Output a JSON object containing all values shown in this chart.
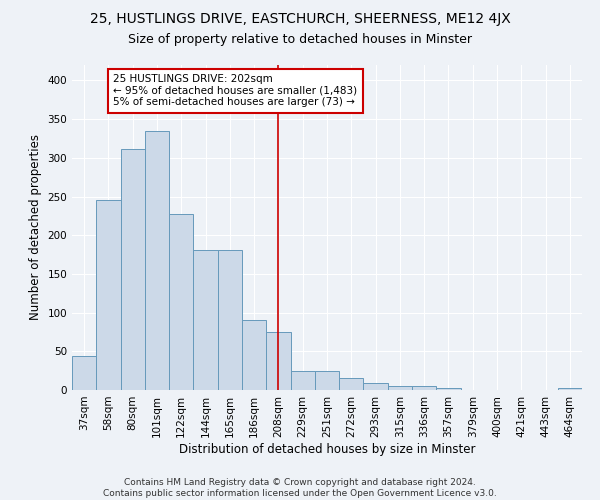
{
  "title": "25, HUSTLINGS DRIVE, EASTCHURCH, SHEERNESS, ME12 4JX",
  "subtitle": "Size of property relative to detached houses in Minster",
  "xlabel": "Distribution of detached houses by size in Minster",
  "ylabel": "Number of detached properties",
  "footer_line1": "Contains HM Land Registry data © Crown copyright and database right 2024.",
  "footer_line2": "Contains public sector information licensed under the Open Government Licence v3.0.",
  "categories": [
    "37sqm",
    "58sqm",
    "80sqm",
    "101sqm",
    "122sqm",
    "144sqm",
    "165sqm",
    "186sqm",
    "208sqm",
    "229sqm",
    "251sqm",
    "272sqm",
    "293sqm",
    "315sqm",
    "336sqm",
    "357sqm",
    "379sqm",
    "400sqm",
    "421sqm",
    "443sqm",
    "464sqm"
  ],
  "values": [
    44,
    246,
    312,
    335,
    228,
    181,
    181,
    90,
    75,
    25,
    25,
    16,
    9,
    5,
    5,
    3,
    0,
    0,
    0,
    0,
    3
  ],
  "bar_color": "#ccd9e8",
  "bar_edge_color": "#6699bb",
  "vline_x_index": 8,
  "vline_color": "#cc0000",
  "annotation_text": "25 HUSTLINGS DRIVE: 202sqm\n← 95% of detached houses are smaller (1,483)\n5% of semi-detached houses are larger (73) →",
  "annotation_box_color": "#cc0000",
  "ylim": [
    0,
    420
  ],
  "yticks": [
    0,
    50,
    100,
    150,
    200,
    250,
    300,
    350,
    400
  ],
  "background_color": "#eef2f7",
  "grid_color": "#ffffff",
  "title_fontsize": 10,
  "subtitle_fontsize": 9,
  "axis_label_fontsize": 8.5,
  "tick_fontsize": 7.5,
  "footer_fontsize": 6.5
}
